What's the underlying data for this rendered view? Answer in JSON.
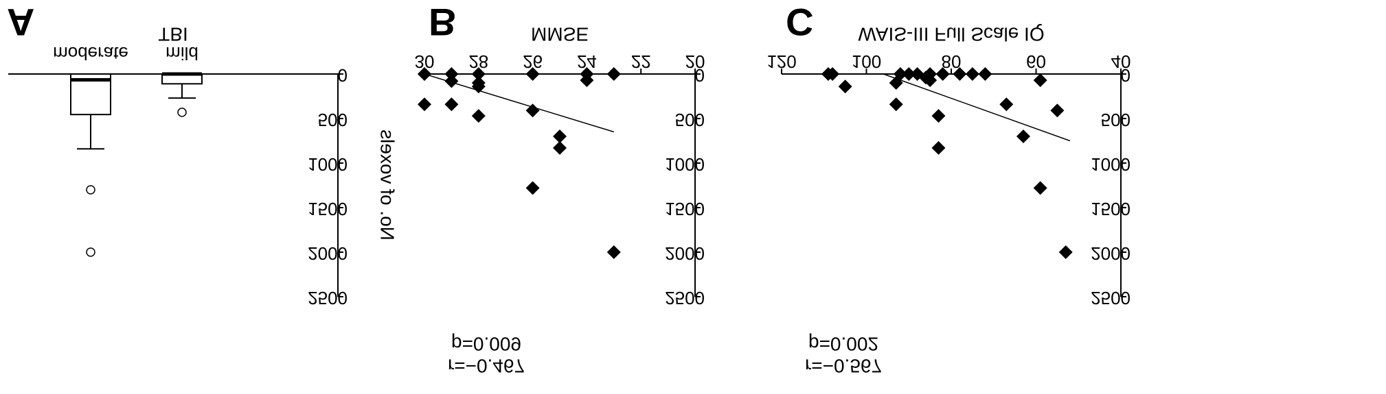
{
  "figure": {
    "mirrored": true,
    "background": "#ffffff",
    "marker_color": "#000000"
  },
  "chart_data": [
    {
      "panel": "A",
      "type": "box",
      "xlabel": "TBI",
      "ylabel": "No. of voxels",
      "ylim": [
        0,
        2500
      ],
      "yticks": [
        0,
        500,
        1000,
        1500,
        2000,
        2500
      ],
      "categories": [
        "mild",
        "moderate"
      ],
      "boxes": [
        {
          "category": "mild",
          "min": 0,
          "q1": 0,
          "median": 0,
          "q3": 110,
          "max": 270,
          "outliers": [
            430
          ]
        },
        {
          "category": "moderate",
          "min": 0,
          "q1": 0,
          "median": 65,
          "q3": 455,
          "max": 840,
          "outliers": [
            1300,
            2000
          ]
        }
      ]
    },
    {
      "panel": "B",
      "type": "scatter",
      "xlabel": "MMSE",
      "ylabel": "",
      "xlim": [
        20,
        30
      ],
      "xticks": [
        20,
        22,
        24,
        26,
        28,
        30
      ],
      "ylim": [
        0,
        2500
      ],
      "yticks": [
        0,
        500,
        1000,
        1500,
        2000,
        2500
      ],
      "points": [
        {
          "x": 23,
          "y": 2000
        },
        {
          "x": 23,
          "y": 0
        },
        {
          "x": 24,
          "y": 0
        },
        {
          "x": 24,
          "y": 70
        },
        {
          "x": 25,
          "y": 700
        },
        {
          "x": 25,
          "y": 830
        },
        {
          "x": 26,
          "y": 0
        },
        {
          "x": 26,
          "y": 410
        },
        {
          "x": 26,
          "y": 1280
        },
        {
          "x": 28,
          "y": 0
        },
        {
          "x": 28,
          "y": 100
        },
        {
          "x": 28,
          "y": 140
        },
        {
          "x": 28,
          "y": 470
        },
        {
          "x": 29,
          "y": 0
        },
        {
          "x": 29,
          "y": 80
        },
        {
          "x": 29,
          "y": 340
        },
        {
          "x": 30,
          "y": 0
        },
        {
          "x": 30,
          "y": 0
        },
        {
          "x": 30,
          "y": 340
        }
      ],
      "trendline": {
        "x": [
          23,
          30
        ],
        "y": [
          650,
          0
        ]
      },
      "annotations": [
        "p=0.009",
        "r=−0.467"
      ]
    },
    {
      "panel": "C",
      "type": "scatter",
      "xlabel": "WAIS-III Full Scale IQ",
      "ylabel": "",
      "xlim": [
        40,
        120
      ],
      "xticks": [
        40,
        60,
        80,
        100,
        120
      ],
      "ylim": [
        0,
        2500
      ],
      "yticks": [
        0,
        500,
        1000,
        1500,
        2000,
        2500
      ],
      "points": [
        {
          "x": 53,
          "y": 2000
        },
        {
          "x": 55,
          "y": 410
        },
        {
          "x": 59,
          "y": 1280
        },
        {
          "x": 59,
          "y": 70
        },
        {
          "x": 63,
          "y": 700
        },
        {
          "x": 67,
          "y": 340
        },
        {
          "x": 72,
          "y": 0
        },
        {
          "x": 75,
          "y": 0
        },
        {
          "x": 78,
          "y": 0
        },
        {
          "x": 82,
          "y": 0
        },
        {
          "x": 83,
          "y": 470
        },
        {
          "x": 83,
          "y": 830
        },
        {
          "x": 85,
          "y": 0
        },
        {
          "x": 85,
          "y": 70
        },
        {
          "x": 86,
          "y": 40
        },
        {
          "x": 88,
          "y": 0
        },
        {
          "x": 90,
          "y": 0
        },
        {
          "x": 92,
          "y": 0
        },
        {
          "x": 93,
          "y": 100
        },
        {
          "x": 93,
          "y": 340
        },
        {
          "x": 105,
          "y": 140
        },
        {
          "x": 108,
          "y": 0
        },
        {
          "x": 109,
          "y": 0
        }
      ],
      "trendline": {
        "x": [
          52,
          96
        ],
        "y": [
          750,
          0
        ]
      },
      "annotations": [
        "p=0.002",
        "r=−0.567"
      ]
    }
  ]
}
